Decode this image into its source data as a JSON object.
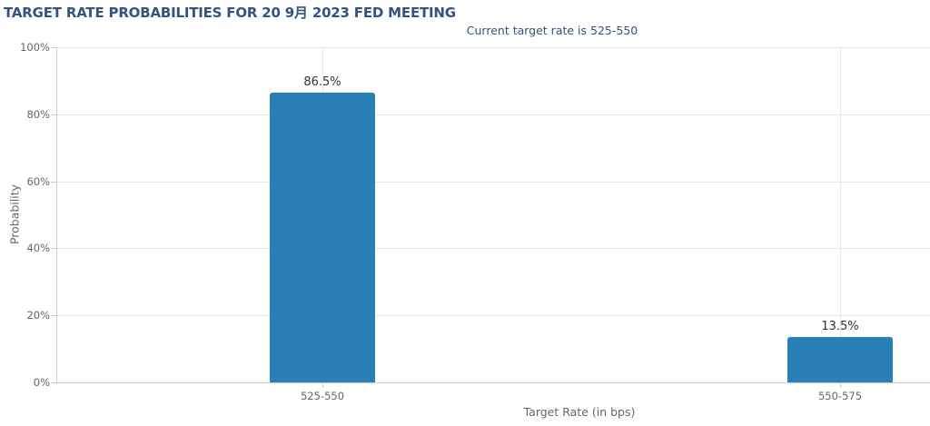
{
  "colors": {
    "bar": "#2B7FB9",
    "title_text": "#34537F",
    "axis_text": "#666666",
    "value_label_text": "#333333",
    "gridline": "#E6E6E6",
    "axis_line": "#CCCCCC"
  },
  "chart_data": {
    "type": "bar",
    "title": "TARGET RATE PROBABILITIES FOR 20 9月 2023 FED MEETING",
    "subtitle": "Current target rate is 525-550",
    "categories": [
      "525-550",
      "550-575"
    ],
    "values": [
      86.5,
      13.5
    ],
    "value_labels": [
      "86.5%",
      "13.5%"
    ],
    "xlabel": "Target Rate (in bps)",
    "ylabel": "Probability",
    "ylim": [
      0,
      100
    ],
    "ytick_interval": 20,
    "ytick_labels": [
      "0%",
      "20%",
      "40%",
      "60%",
      "80%",
      "100%"
    ],
    "grid": true,
    "legend": false
  }
}
